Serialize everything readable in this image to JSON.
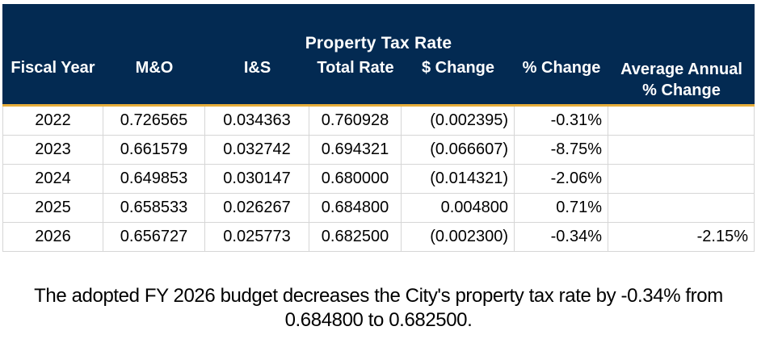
{
  "table": {
    "title": "Property Tax Rate",
    "columns": [
      "Fiscal Year",
      "M&O",
      "I&S",
      "Total Rate",
      "$ Change",
      "% Change"
    ],
    "avg_annual_header": {
      "line1": "Average Annual",
      "line2": "% Change"
    },
    "rows": [
      [
        "2022",
        "0.726565",
        "0.034363",
        "0.760928",
        "(0.002395)",
        "-0.31%",
        ""
      ],
      [
        "2023",
        "0.661579",
        "0.032742",
        "0.694321",
        "(0.066607)",
        "-8.75%",
        ""
      ],
      [
        "2024",
        "0.649853",
        "0.030147",
        "0.680000",
        "(0.014321)",
        "-2.06%",
        ""
      ],
      [
        "2025",
        "0.658533",
        "0.026267",
        "0.684800",
        "0.004800",
        "0.71%",
        ""
      ],
      [
        "2026",
        "0.656727",
        "0.025773",
        "0.682500",
        "(0.002300)",
        "-0.34%",
        "-2.15%"
      ]
    ]
  },
  "footer": {
    "line1": "The adopted FY 2026 budget decreases the City's property tax rate by -0.34% from",
    "line2": "0.684800 to 0.682500."
  },
  "colors": {
    "header_navy": "#032A52",
    "accent_gold": "#E7AE3B",
    "grid_gray": "#D6D6D6",
    "header_text": "#FFFFFF",
    "body_text": "#000000"
  },
  "chart_data": {
    "type": "table",
    "title": "Property Tax Rate",
    "columns": [
      "Fiscal Year",
      "M&O",
      "I&S",
      "Total Rate",
      "$ Change",
      "% Change",
      "Average Annual % Change"
    ],
    "rows": [
      [
        "2022",
        0.726565,
        0.034363,
        0.760928,
        -0.002395,
        "-0.31%",
        null
      ],
      [
        "2023",
        0.661579,
        0.032742,
        0.694321,
        -0.066607,
        "-8.75%",
        null
      ],
      [
        "2024",
        0.649853,
        0.030147,
        0.68,
        -0.014321,
        "-2.06%",
        null
      ],
      [
        "2025",
        0.658533,
        0.026267,
        0.6848,
        0.0048,
        "0.71%",
        null
      ],
      [
        "2026",
        0.656727,
        0.025773,
        0.6825,
        -0.0023,
        "-0.34%",
        "-2.15%"
      ]
    ]
  }
}
